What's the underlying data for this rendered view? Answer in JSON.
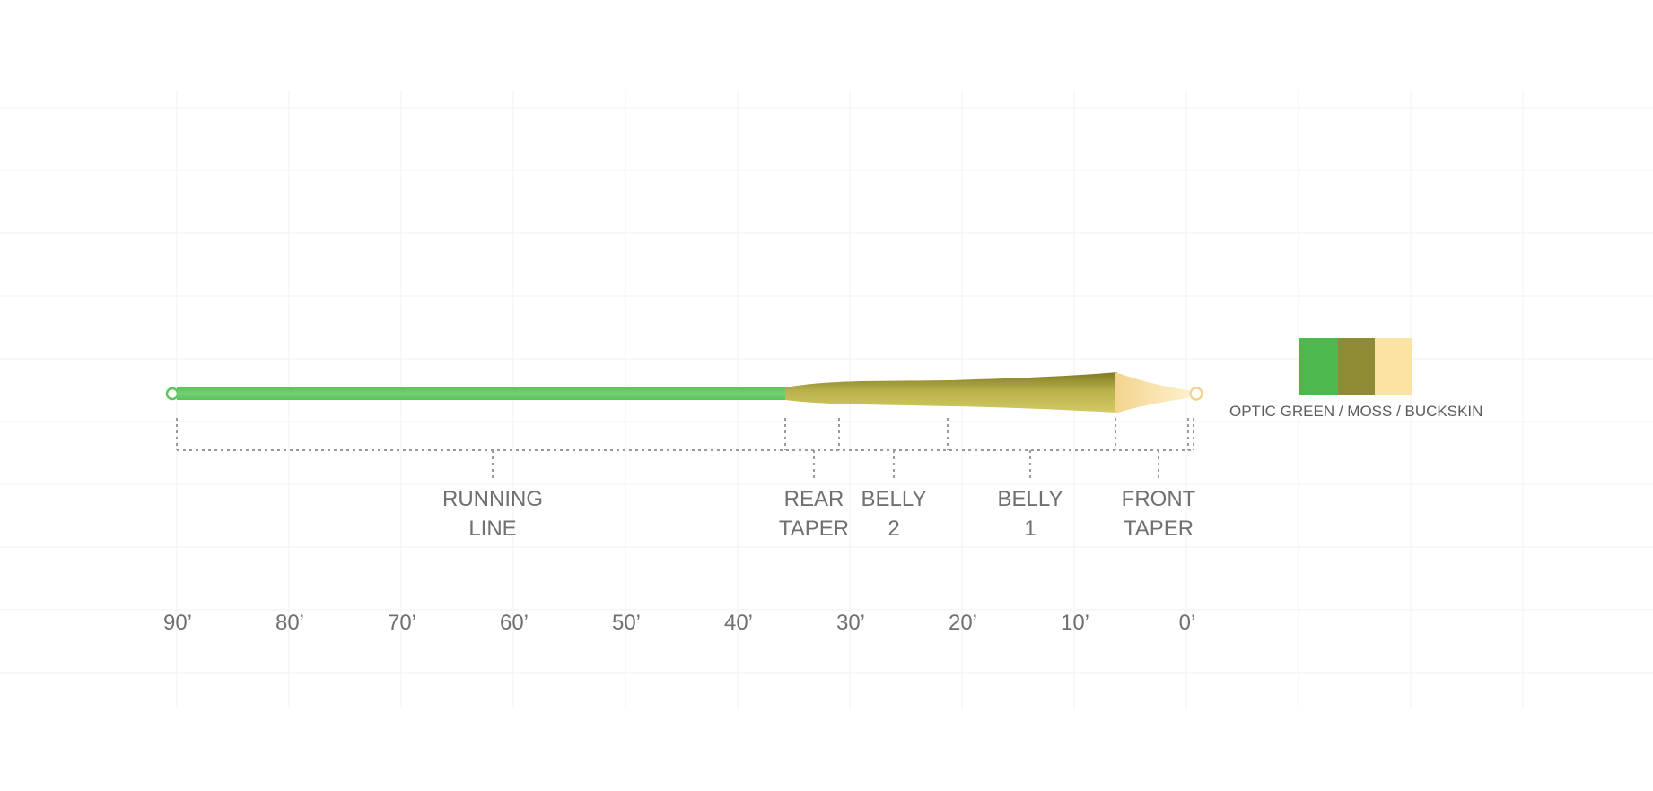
{
  "sections": [
    {
      "lines": [
        "RUNNING",
        "LINE"
      ]
    },
    {
      "lines": [
        "REAR",
        "TAPER"
      ]
    },
    {
      "lines": [
        "BELLY",
        "2"
      ]
    },
    {
      "lines": [
        "BELLY",
        "1"
      ]
    },
    {
      "lines": [
        "FRONT",
        "TAPER"
      ]
    }
  ],
  "axis_ticks": [
    "90’",
    "80’",
    "70’",
    "60’",
    "50’",
    "40’",
    "30’",
    "20’",
    "10’",
    "0’"
  ],
  "legend": {
    "label": "OPTIC GREEN / MOSS / BUCKSKIN",
    "swatches": [
      {
        "name": "optic-green",
        "color": "#4cb84e"
      },
      {
        "name": "moss",
        "color": "#8e8b34"
      },
      {
        "name": "buckskin",
        "color": "#fbe3a4"
      }
    ]
  },
  "colors": {
    "running_line": "#66cc66",
    "head_light": "#c9c25a",
    "head_dark": "#9a9230",
    "tip": "#fbe3a4",
    "text": "#707070",
    "dotted": "#9a9a9a",
    "grid": "#f1f1f1"
  }
}
